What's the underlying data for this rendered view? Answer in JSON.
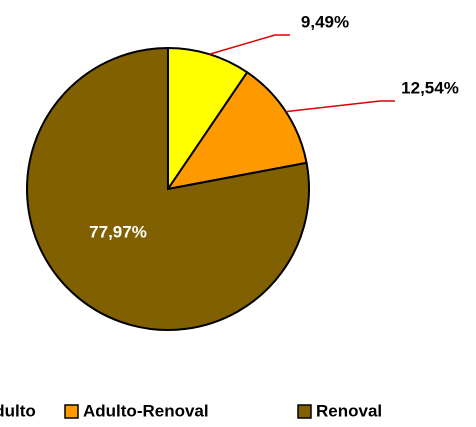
{
  "chart_data": {
    "type": "pie",
    "categories": [
      "Adulto",
      "Adulto-Renoval",
      "Renoval"
    ],
    "values": [
      9.49,
      12.54,
      77.97
    ],
    "value_labels": [
      "9,49%",
      "12,54%",
      "77,97%"
    ],
    "colors": [
      "#ffff00",
      "#ff9900",
      "#806000"
    ],
    "legend": "bottom"
  }
}
